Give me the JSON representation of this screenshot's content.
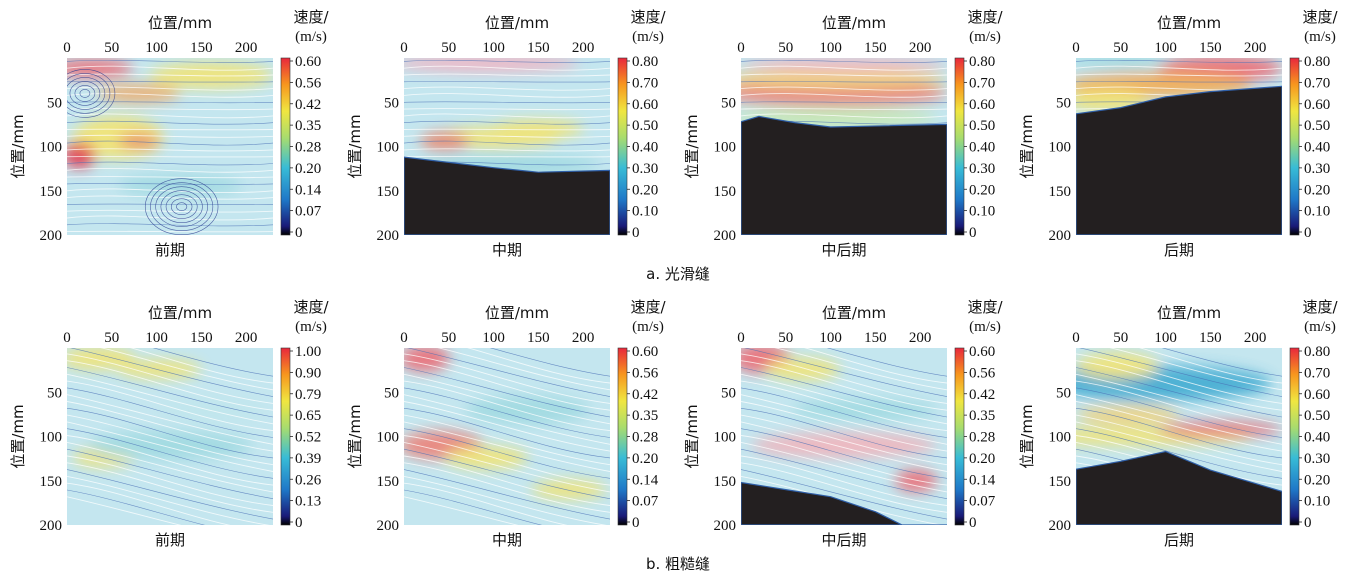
{
  "figure": {
    "x_axis_label": "位置/mm",
    "y_axis_label": "位置/mm",
    "colorbar_title_line1": "速度/",
    "colorbar_title_line2": "(m/s)",
    "row_captions": [
      "a. 光滑缝",
      "b. 粗糙缝"
    ]
  },
  "chart_data": [
    {
      "type": "heatmap",
      "panel": "a-1",
      "row": "a",
      "caption": "前期",
      "xlabel": "位置/mm",
      "ylabel": "位置/mm",
      "xlim": [
        0,
        230
      ],
      "ylim": [
        200,
        0
      ],
      "x_ticks": [
        0,
        50,
        100,
        150,
        200
      ],
      "y_ticks": [
        50,
        100,
        150,
        200
      ],
      "colorbar": {
        "min": 0,
        "max": 0.6,
        "ticks": [
          "0.60",
          "0.56",
          "0.42",
          "0.35",
          "0.28",
          "0.20",
          "0.14",
          "0.07",
          "0"
        ]
      },
      "boundary": []
    },
    {
      "type": "heatmap",
      "panel": "a-2",
      "row": "a",
      "caption": "中期",
      "xlabel": "位置/mm",
      "ylabel": "位置/mm",
      "xlim": [
        0,
        230
      ],
      "ylim": [
        200,
        0
      ],
      "x_ticks": [
        0,
        50,
        100,
        150,
        200
      ],
      "y_ticks": [
        50,
        100,
        150,
        200
      ],
      "colorbar": {
        "min": 0,
        "max": 0.8,
        "ticks": [
          "0.80",
          "0.70",
          "0.60",
          "0.50",
          "0.40",
          "0.30",
          "0.20",
          "0.10",
          "0"
        ]
      },
      "boundary": [
        [
          0,
          112
        ],
        [
          50,
          118
        ],
        [
          100,
          124
        ],
        [
          150,
          129
        ],
        [
          230,
          127
        ]
      ]
    },
    {
      "type": "heatmap",
      "panel": "a-3",
      "row": "a",
      "caption": "中后期",
      "xlabel": "位置/mm",
      "ylabel": "位置/mm",
      "xlim": [
        0,
        230
      ],
      "ylim": [
        200,
        0
      ],
      "x_ticks": [
        0,
        50,
        100,
        150,
        200
      ],
      "y_ticks": [
        50,
        100,
        150,
        200
      ],
      "colorbar": {
        "min": 0,
        "max": 0.8,
        "ticks": [
          "0.80",
          "0.70",
          "0.60",
          "0.50",
          "0.40",
          "0.30",
          "0.20",
          "0.10",
          "0"
        ]
      },
      "boundary": [
        [
          0,
          72
        ],
        [
          20,
          66
        ],
        [
          60,
          73
        ],
        [
          100,
          78
        ],
        [
          230,
          75
        ]
      ]
    },
    {
      "type": "heatmap",
      "panel": "a-4",
      "row": "a",
      "caption": "后期",
      "xlabel": "位置/mm",
      "ylabel": "位置/mm",
      "xlim": [
        0,
        230
      ],
      "ylim": [
        200,
        0
      ],
      "x_ticks": [
        0,
        50,
        100,
        150,
        200
      ],
      "y_ticks": [
        50,
        100,
        150,
        200
      ],
      "colorbar": {
        "min": 0,
        "max": 0.8,
        "ticks": [
          "0.80",
          "0.70",
          "0.60",
          "0.50",
          "0.40",
          "0.30",
          "0.20",
          "0.10",
          "0"
        ]
      },
      "boundary": [
        [
          0,
          63
        ],
        [
          50,
          56
        ],
        [
          100,
          44
        ],
        [
          150,
          38
        ],
        [
          230,
          32
        ]
      ]
    },
    {
      "type": "heatmap",
      "panel": "b-1",
      "row": "b",
      "caption": "前期",
      "xlabel": "位置/mm",
      "ylabel": "位置/mm",
      "xlim": [
        0,
        230
      ],
      "ylim": [
        200,
        0
      ],
      "x_ticks": [
        0,
        50,
        100,
        150,
        200
      ],
      "y_ticks": [
        50,
        100,
        150,
        200
      ],
      "colorbar": {
        "min": 0,
        "max": 1.0,
        "ticks": [
          "1.00",
          "0.90",
          "0.79",
          "0.65",
          "0.52",
          "0.39",
          "0.26",
          "0.13",
          "0"
        ]
      },
      "boundary": []
    },
    {
      "type": "heatmap",
      "panel": "b-2",
      "row": "b",
      "caption": "中期",
      "xlabel": "位置/mm",
      "ylabel": "位置/mm",
      "xlim": [
        0,
        230
      ],
      "ylim": [
        200,
        0
      ],
      "x_ticks": [
        0,
        50,
        100,
        150,
        200
      ],
      "y_ticks": [
        50,
        100,
        150,
        200
      ],
      "colorbar": {
        "min": 0,
        "max": 0.6,
        "ticks": [
          "0.60",
          "0.56",
          "0.42",
          "0.35",
          "0.28",
          "0.20",
          "0.14",
          "0.07",
          "0"
        ]
      },
      "boundary": []
    },
    {
      "type": "heatmap",
      "panel": "b-3",
      "row": "b",
      "caption": "中后期",
      "xlabel": "位置/mm",
      "ylabel": "位置/mm",
      "xlim": [
        0,
        230
      ],
      "ylim": [
        200,
        0
      ],
      "x_ticks": [
        0,
        50,
        100,
        150,
        200
      ],
      "y_ticks": [
        50,
        100,
        150,
        200
      ],
      "colorbar": {
        "min": 0,
        "max": 0.6,
        "ticks": [
          "0.60",
          "0.56",
          "0.42",
          "0.35",
          "0.28",
          "0.20",
          "0.14",
          "0.07",
          "0"
        ]
      },
      "boundary": [
        [
          0,
          152
        ],
        [
          50,
          160
        ],
        [
          100,
          168
        ],
        [
          150,
          185
        ],
        [
          180,
          200
        ]
      ]
    },
    {
      "type": "heatmap",
      "panel": "b-4",
      "row": "b",
      "caption": "后期",
      "xlabel": "位置/mm",
      "ylabel": "位置/mm",
      "xlim": [
        0,
        230
      ],
      "ylim": [
        200,
        0
      ],
      "x_ticks": [
        0,
        50,
        100,
        150,
        200
      ],
      "y_ticks": [
        50,
        100,
        150,
        200
      ],
      "colorbar": {
        "min": 0,
        "max": 0.8,
        "ticks": [
          "0.80",
          "0.70",
          "0.60",
          "0.50",
          "0.40",
          "0.30",
          "0.20",
          "0.10",
          "0"
        ]
      },
      "boundary": [
        [
          0,
          137
        ],
        [
          50,
          128
        ],
        [
          100,
          117
        ],
        [
          150,
          138
        ],
        [
          230,
          162
        ]
      ]
    }
  ]
}
